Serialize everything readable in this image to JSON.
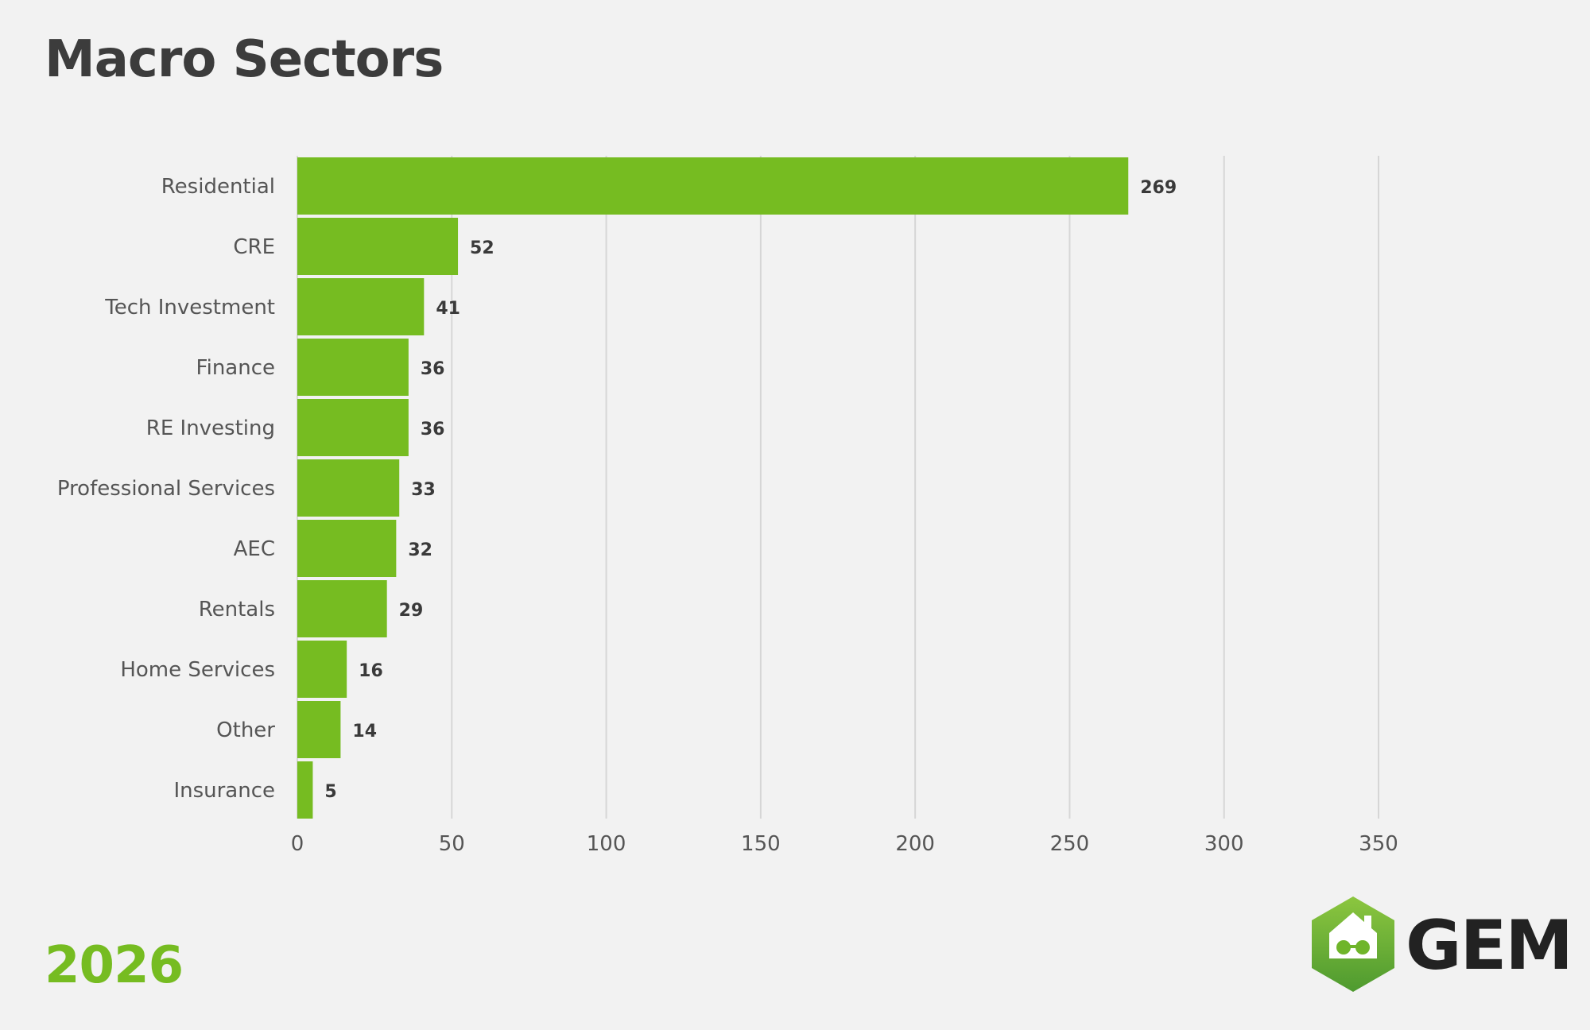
{
  "title": "Macro Sectors",
  "year_label": "2026",
  "brand": {
    "name": "GEM",
    "icon": "house-with-glasses-hexagon-icon"
  },
  "colors": {
    "bar": "#76bc21",
    "grid": "#d6d6d6",
    "text": "#444444",
    "background": "#f2f2f2"
  },
  "chart_data": {
    "type": "bar",
    "orientation": "horizontal",
    "categories": [
      "Residential",
      "CRE",
      "Tech Investment",
      "Finance",
      "RE Investing",
      "Professional Services",
      "AEC",
      "Rentals",
      "Home Services",
      "Other",
      "Insurance"
    ],
    "values": [
      269,
      52,
      41,
      36,
      36,
      33,
      32,
      29,
      16,
      14,
      5
    ],
    "x_ticks": [
      0,
      50,
      100,
      150,
      200,
      250,
      300,
      350
    ],
    "xlim": [
      0,
      350
    ],
    "grid": true,
    "data_labels": true,
    "legend": "none"
  }
}
